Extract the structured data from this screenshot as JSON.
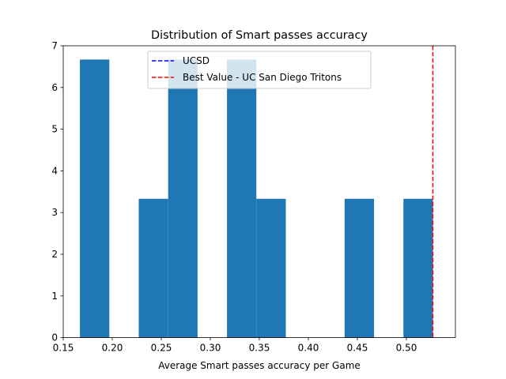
{
  "chart_data": {
    "type": "bar",
    "title": "Distribution of Smart passes accuracy",
    "xlabel": "Average Smart passes accuracy per Game",
    "ylabel": "",
    "xlim": [
      0.15,
      0.55
    ],
    "ylim": [
      0,
      7
    ],
    "xticks": [
      "0.15",
      "0.20",
      "0.25",
      "0.30",
      "0.35",
      "0.40",
      "0.45",
      "0.50"
    ],
    "xtick_values": [
      0.15,
      0.2,
      0.25,
      0.3,
      0.35,
      0.4,
      0.45,
      0.5
    ],
    "yticks": [
      "0",
      "1",
      "2",
      "3",
      "4",
      "5",
      "6",
      "7"
    ],
    "ytick_values": [
      0,
      1,
      2,
      3,
      4,
      5,
      6,
      7
    ],
    "bins": [
      {
        "x0": 0.167,
        "x1": 0.197,
        "count": 6.67
      },
      {
        "x0": 0.197,
        "x1": 0.227,
        "count": 0
      },
      {
        "x0": 0.227,
        "x1": 0.257,
        "count": 3.33
      },
      {
        "x0": 0.257,
        "x1": 0.287,
        "count": 6.67
      },
      {
        "x0": 0.287,
        "x1": 0.317,
        "count": 0
      },
      {
        "x0": 0.317,
        "x1": 0.347,
        "count": 6.67
      },
      {
        "x0": 0.347,
        "x1": 0.377,
        "count": 3.33
      },
      {
        "x0": 0.377,
        "x1": 0.407,
        "count": 0
      },
      {
        "x0": 0.407,
        "x1": 0.437,
        "count": 0
      },
      {
        "x0": 0.437,
        "x1": 0.467,
        "count": 3.33
      },
      {
        "x0": 0.467,
        "x1": 0.497,
        "count": 0
      },
      {
        "x0": 0.497,
        "x1": 0.527,
        "count": 3.33
      }
    ],
    "bar_color": "#1f77b4",
    "reference_lines": [
      {
        "name": "UCSD",
        "x": null,
        "color": "#0000ff",
        "style": "dashed"
      },
      {
        "name": "Best Value - UC San Diego Tritons",
        "x": 0.527,
        "color": "#ff0000",
        "style": "dashed"
      }
    ],
    "legend_position": "top-center",
    "grid": false
  }
}
